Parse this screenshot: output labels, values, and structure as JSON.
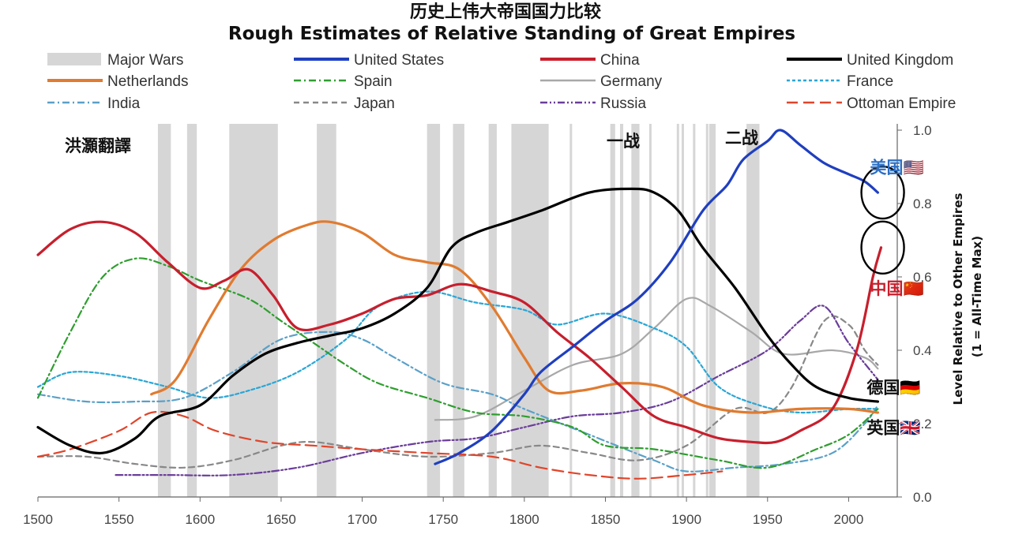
{
  "chart_data": {
    "type": "line",
    "title": "历史上伟大帝国国力比较",
    "subtitle": "Rough Estimates of Relative Standing of Great Empires",
    "ylabel_line1": "Level Relative to Other Empires",
    "ylabel_line2": "(1 = All-Time Max)",
    "xlim": [
      1500,
      2030
    ],
    "ylim": [
      0,
      1.0
    ],
    "x_ticks": [
      "1500",
      "1550",
      "1600",
      "1650",
      "1700",
      "1750",
      "1800",
      "1850",
      "1900",
      "1950",
      "2000"
    ],
    "y_ticks": [
      "0.0",
      "0.2",
      "0.4",
      "0.6",
      "0.8",
      "1.0"
    ],
    "watermark_text": "洪灝翻譯",
    "war_label_1": "一战",
    "war_label_2": "二战",
    "major_wars": [
      [
        1574,
        1582
      ],
      [
        1592,
        1598
      ],
      [
        1618,
        1648
      ],
      [
        1672,
        1684
      ],
      [
        1740,
        1748
      ],
      [
        1756,
        1763
      ],
      [
        1778,
        1783
      ],
      [
        1792,
        1815
      ],
      [
        1828,
        1829
      ],
      [
        1853,
        1856
      ],
      [
        1859,
        1861
      ],
      [
        1866,
        1871
      ],
      [
        1877,
        1878
      ],
      [
        1894,
        1895
      ],
      [
        1897,
        1898
      ],
      [
        1904,
        1905
      ],
      [
        1912,
        1913
      ],
      [
        1914,
        1918
      ],
      [
        1937,
        1945
      ]
    ],
    "country_labels": [
      {
        "text": "美国🇺🇸",
        "x": 2020,
        "y": 0.9,
        "color": "#2d6fc4"
      },
      {
        "text": "中国🇨🇳",
        "x": 2020,
        "y": 0.57,
        "color": "#c71f2d"
      },
      {
        "text": "德国🇩🇪",
        "x": 2018,
        "y": 0.3,
        "color": "#111111"
      },
      {
        "text": "英国🇬🇧",
        "x": 2018,
        "y": 0.19,
        "color": "#111111"
      }
    ],
    "circle_marks": [
      {
        "x": 2022,
        "y": 0.83
      },
      {
        "x": 2022,
        "y": 0.68
      }
    ],
    "legend": [
      {
        "name": "Major Wars",
        "kind": "bar",
        "color": "#d6d6d6"
      },
      {
        "name": "United States",
        "kind": "solid",
        "color": "#1f3fbf"
      },
      {
        "name": "China",
        "kind": "solid",
        "color": "#c71f2d"
      },
      {
        "name": "United Kingdom",
        "kind": "solid",
        "color": "#000000"
      },
      {
        "name": "Netherlands",
        "kind": "solid",
        "color": "#e07b30"
      },
      {
        "name": "Spain",
        "kind": "dashdot",
        "color": "#2f9e2f"
      },
      {
        "name": "Germany",
        "kind": "solid",
        "color": "#a8a8a8"
      },
      {
        "name": "France",
        "kind": "dotted",
        "color": "#2aa6d6"
      },
      {
        "name": "India",
        "kind": "dashdot",
        "color": "#5aa0c8"
      },
      {
        "name": "Japan",
        "kind": "dashed",
        "color": "#888888"
      },
      {
        "name": "Russia",
        "kind": "dashdotdot",
        "color": "#6a3d9a"
      },
      {
        "name": "Ottoman Empire",
        "kind": "longdash",
        "color": "#e0452b"
      }
    ],
    "series": [
      {
        "name": "United States",
        "points": [
          [
            1745,
            0.09
          ],
          [
            1760,
            0.12
          ],
          [
            1780,
            0.18
          ],
          [
            1800,
            0.28
          ],
          [
            1810,
            0.34
          ],
          [
            1830,
            0.41
          ],
          [
            1850,
            0.48
          ],
          [
            1870,
            0.54
          ],
          [
            1890,
            0.64
          ],
          [
            1910,
            0.78
          ],
          [
            1925,
            0.85
          ],
          [
            1935,
            0.92
          ],
          [
            1950,
            0.97
          ],
          [
            1958,
            1.0
          ],
          [
            1970,
            0.96
          ],
          [
            1985,
            0.91
          ],
          [
            2000,
            0.88
          ],
          [
            2010,
            0.86
          ],
          [
            2018,
            0.83
          ]
        ]
      },
      {
        "name": "China",
        "points": [
          [
            1500,
            0.66
          ],
          [
            1520,
            0.73
          ],
          [
            1540,
            0.75
          ],
          [
            1560,
            0.72
          ],
          [
            1580,
            0.64
          ],
          [
            1600,
            0.57
          ],
          [
            1615,
            0.59
          ],
          [
            1630,
            0.62
          ],
          [
            1645,
            0.55
          ],
          [
            1660,
            0.46
          ],
          [
            1680,
            0.47
          ],
          [
            1700,
            0.5
          ],
          [
            1720,
            0.54
          ],
          [
            1740,
            0.55
          ],
          [
            1760,
            0.58
          ],
          [
            1780,
            0.56
          ],
          [
            1800,
            0.53
          ],
          [
            1820,
            0.45
          ],
          [
            1840,
            0.38
          ],
          [
            1860,
            0.3
          ],
          [
            1880,
            0.22
          ],
          [
            1900,
            0.19
          ],
          [
            1920,
            0.16
          ],
          [
            1940,
            0.15
          ],
          [
            1955,
            0.15
          ],
          [
            1970,
            0.18
          ],
          [
            1990,
            0.24
          ],
          [
            2005,
            0.4
          ],
          [
            2015,
            0.6
          ],
          [
            2020,
            0.68
          ]
        ]
      },
      {
        "name": "United Kingdom",
        "points": [
          [
            1500,
            0.19
          ],
          [
            1520,
            0.14
          ],
          [
            1540,
            0.12
          ],
          [
            1560,
            0.16
          ],
          [
            1575,
            0.22
          ],
          [
            1600,
            0.25
          ],
          [
            1620,
            0.33
          ],
          [
            1640,
            0.39
          ],
          [
            1660,
            0.42
          ],
          [
            1680,
            0.44
          ],
          [
            1700,
            0.46
          ],
          [
            1720,
            0.5
          ],
          [
            1740,
            0.57
          ],
          [
            1755,
            0.68
          ],
          [
            1770,
            0.72
          ],
          [
            1790,
            0.75
          ],
          [
            1810,
            0.78
          ],
          [
            1840,
            0.83
          ],
          [
            1866,
            0.84
          ],
          [
            1880,
            0.83
          ],
          [
            1895,
            0.78
          ],
          [
            1910,
            0.68
          ],
          [
            1930,
            0.57
          ],
          [
            1950,
            0.44
          ],
          [
            1965,
            0.36
          ],
          [
            1980,
            0.3
          ],
          [
            2000,
            0.27
          ],
          [
            2018,
            0.26
          ]
        ]
      },
      {
        "name": "Netherlands",
        "points": [
          [
            1570,
            0.28
          ],
          [
            1585,
            0.32
          ],
          [
            1605,
            0.48
          ],
          [
            1625,
            0.62
          ],
          [
            1645,
            0.7
          ],
          [
            1665,
            0.74
          ],
          [
            1680,
            0.75
          ],
          [
            1700,
            0.72
          ],
          [
            1720,
            0.66
          ],
          [
            1740,
            0.64
          ],
          [
            1760,
            0.62
          ],
          [
            1780,
            0.52
          ],
          [
            1800,
            0.38
          ],
          [
            1815,
            0.29
          ],
          [
            1835,
            0.29
          ],
          [
            1860,
            0.31
          ],
          [
            1885,
            0.3
          ],
          [
            1910,
            0.25
          ],
          [
            1940,
            0.23
          ],
          [
            1970,
            0.24
          ],
          [
            2000,
            0.24
          ],
          [
            2018,
            0.23
          ]
        ]
      },
      {
        "name": "Spain",
        "points": [
          [
            1500,
            0.27
          ],
          [
            1520,
            0.45
          ],
          [
            1540,
            0.6
          ],
          [
            1560,
            0.65
          ],
          [
            1580,
            0.63
          ],
          [
            1600,
            0.59
          ],
          [
            1630,
            0.54
          ],
          [
            1650,
            0.48
          ],
          [
            1670,
            0.42
          ],
          [
            1690,
            0.36
          ],
          [
            1710,
            0.31
          ],
          [
            1740,
            0.27
          ],
          [
            1770,
            0.23
          ],
          [
            1800,
            0.22
          ],
          [
            1830,
            0.19
          ],
          [
            1850,
            0.14
          ],
          [
            1880,
            0.13
          ],
          [
            1920,
            0.1
          ],
          [
            1950,
            0.08
          ],
          [
            1980,
            0.13
          ],
          [
            2000,
            0.17
          ],
          [
            2018,
            0.24
          ]
        ]
      },
      {
        "name": "Germany",
        "points": [
          [
            1745,
            0.21
          ],
          [
            1770,
            0.22
          ],
          [
            1800,
            0.29
          ],
          [
            1830,
            0.36
          ],
          [
            1860,
            0.39
          ],
          [
            1880,
            0.46
          ],
          [
            1900,
            0.54
          ],
          [
            1915,
            0.52
          ],
          [
            1940,
            0.45
          ],
          [
            1960,
            0.39
          ],
          [
            1990,
            0.4
          ],
          [
            2010,
            0.38
          ],
          [
            2018,
            0.35
          ]
        ]
      },
      {
        "name": "France",
        "points": [
          [
            1500,
            0.3
          ],
          [
            1520,
            0.34
          ],
          [
            1550,
            0.33
          ],
          [
            1580,
            0.3
          ],
          [
            1605,
            0.27
          ],
          [
            1630,
            0.29
          ],
          [
            1660,
            0.34
          ],
          [
            1690,
            0.43
          ],
          [
            1710,
            0.52
          ],
          [
            1740,
            0.56
          ],
          [
            1770,
            0.53
          ],
          [
            1800,
            0.51
          ],
          [
            1820,
            0.47
          ],
          [
            1850,
            0.5
          ],
          [
            1880,
            0.46
          ],
          [
            1900,
            0.41
          ],
          [
            1920,
            0.3
          ],
          [
            1945,
            0.25
          ],
          [
            1970,
            0.23
          ],
          [
            2000,
            0.24
          ],
          [
            2018,
            0.24
          ]
        ]
      },
      {
        "name": "India",
        "points": [
          [
            1500,
            0.28
          ],
          [
            1530,
            0.26
          ],
          [
            1560,
            0.26
          ],
          [
            1590,
            0.27
          ],
          [
            1620,
            0.34
          ],
          [
            1650,
            0.43
          ],
          [
            1680,
            0.45
          ],
          [
            1700,
            0.43
          ],
          [
            1720,
            0.38
          ],
          [
            1750,
            0.31
          ],
          [
            1780,
            0.28
          ],
          [
            1800,
            0.24
          ],
          [
            1840,
            0.17
          ],
          [
            1880,
            0.1
          ],
          [
            1900,
            0.07
          ],
          [
            1930,
            0.08
          ],
          [
            1960,
            0.09
          ],
          [
            1990,
            0.12
          ],
          [
            2010,
            0.2
          ],
          [
            2018,
            0.25
          ]
        ]
      },
      {
        "name": "Japan",
        "points": [
          [
            1500,
            0.11
          ],
          [
            1530,
            0.11
          ],
          [
            1560,
            0.09
          ],
          [
            1590,
            0.08
          ],
          [
            1620,
            0.1
          ],
          [
            1650,
            0.14
          ],
          [
            1670,
            0.15
          ],
          [
            1700,
            0.13
          ],
          [
            1740,
            0.11
          ],
          [
            1780,
            0.12
          ],
          [
            1810,
            0.14
          ],
          [
            1840,
            0.12
          ],
          [
            1870,
            0.1
          ],
          [
            1900,
            0.14
          ],
          [
            1930,
            0.24
          ],
          [
            1950,
            0.23
          ],
          [
            1965,
            0.3
          ],
          [
            1985,
            0.48
          ],
          [
            2000,
            0.47
          ],
          [
            2010,
            0.4
          ],
          [
            2018,
            0.36
          ]
        ]
      },
      {
        "name": "Russia",
        "points": [
          [
            1548,
            0.06
          ],
          [
            1580,
            0.06
          ],
          [
            1620,
            0.06
          ],
          [
            1660,
            0.08
          ],
          [
            1700,
            0.12
          ],
          [
            1740,
            0.15
          ],
          [
            1770,
            0.16
          ],
          [
            1800,
            0.19
          ],
          [
            1830,
            0.22
          ],
          [
            1860,
            0.23
          ],
          [
            1890,
            0.26
          ],
          [
            1920,
            0.33
          ],
          [
            1950,
            0.4
          ],
          [
            1970,
            0.48
          ],
          [
            1985,
            0.52
          ],
          [
            2000,
            0.42
          ],
          [
            2018,
            0.32
          ]
        ]
      },
      {
        "name": "Ottoman Empire",
        "points": [
          [
            1500,
            0.11
          ],
          [
            1520,
            0.13
          ],
          [
            1550,
            0.18
          ],
          [
            1570,
            0.23
          ],
          [
            1590,
            0.22
          ],
          [
            1610,
            0.18
          ],
          [
            1640,
            0.15
          ],
          [
            1670,
            0.14
          ],
          [
            1700,
            0.13
          ],
          [
            1740,
            0.12
          ],
          [
            1780,
            0.11
          ],
          [
            1810,
            0.08
          ],
          [
            1840,
            0.06
          ],
          [
            1870,
            0.05
          ],
          [
            1900,
            0.06
          ],
          [
            1922,
            0.07
          ]
        ]
      }
    ]
  }
}
